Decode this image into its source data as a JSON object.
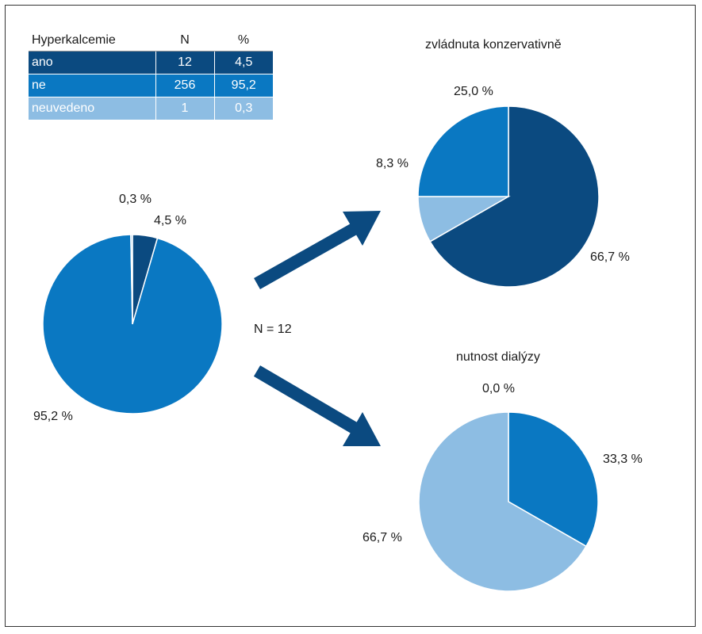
{
  "table": {
    "headers": [
      "Hyperkalcemie",
      "N",
      "%"
    ],
    "rows": [
      {
        "label": "ano",
        "n": "12",
        "pct": "4,5",
        "color": "#0b4a80"
      },
      {
        "label": "ne",
        "n": "256",
        "pct": "95,2",
        "color": "#0a78c2"
      },
      {
        "label": "neuvedeno",
        "n": "1",
        "pct": "0,3",
        "color": "#8dbde3"
      }
    ]
  },
  "center_label": "N = 12",
  "chart_data": [
    {
      "type": "pie",
      "title": "",
      "slices": [
        {
          "label": "ano",
          "value": 4.5,
          "display": "4,5 %",
          "color": "#0b4a80"
        },
        {
          "label": "ne",
          "value": 95.2,
          "display": "95,2 %",
          "color": "#0a78c2"
        },
        {
          "label": "neuvedeno",
          "value": 0.3,
          "display": "0,3 %",
          "color": "#8dbde3"
        }
      ]
    },
    {
      "type": "pie",
      "title": "zvládnuta konzervativně",
      "slices": [
        {
          "value": 66.7,
          "display": "66,7 %",
          "color": "#0b4a80"
        },
        {
          "value": 25.0,
          "display": "25,0 %",
          "color": "#0a78c2"
        },
        {
          "value": 8.3,
          "display": "8,3 %",
          "color": "#8dbde3"
        }
      ]
    },
    {
      "type": "pie",
      "title": "nutnost dialýzy",
      "slices": [
        {
          "value": 0.0,
          "display": "0,0 %",
          "color": "#0b4a80"
        },
        {
          "value": 33.3,
          "display": "33,3 %",
          "color": "#0a78c2"
        },
        {
          "value": 66.7,
          "display": "66,7 %",
          "color": "#8dbde3"
        }
      ]
    }
  ]
}
